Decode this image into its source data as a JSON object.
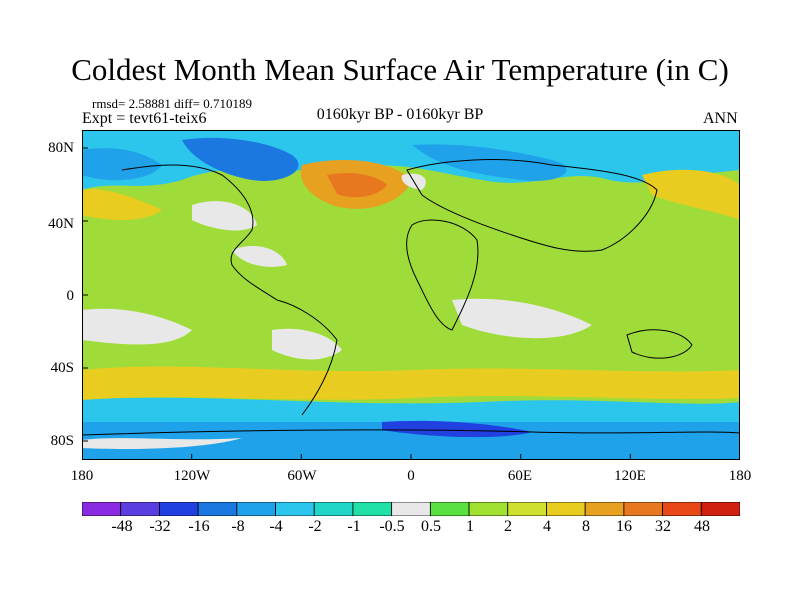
{
  "title": "Coldest Month Mean Surface Air Temperature (in C)",
  "stats": "rmsd= 2.58881  diff= 0.710189",
  "expt": "Expt = tevt61-teix6",
  "period": "0160kyr BP - 0160kyr BP",
  "season": "ANN",
  "lat_labels": [
    "80N",
    "40N",
    "0",
    "40S",
    "80S"
  ],
  "lon_labels": [
    "180",
    "120W",
    "60W",
    "0",
    "60E",
    "120E",
    "180"
  ],
  "colorbar": {
    "labels": [
      "-48",
      "-32",
      "-16",
      "-8",
      "-4",
      "-2",
      "-1",
      "-0.5",
      "0.5",
      "1",
      "2",
      "4",
      "8",
      "16",
      "32",
      "48"
    ],
    "colors": [
      "#8a2be2",
      "#5a3ee0",
      "#2040e0",
      "#1a78e0",
      "#1fa2ea",
      "#2cc6ec",
      "#20d6c8",
      "#20e0a8",
      "#e8e8e8",
      "#5ae040",
      "#a0e030",
      "#cfe030",
      "#e8cc20",
      "#e8a020",
      "#e87820",
      "#e84818",
      "#d02010"
    ]
  }
}
